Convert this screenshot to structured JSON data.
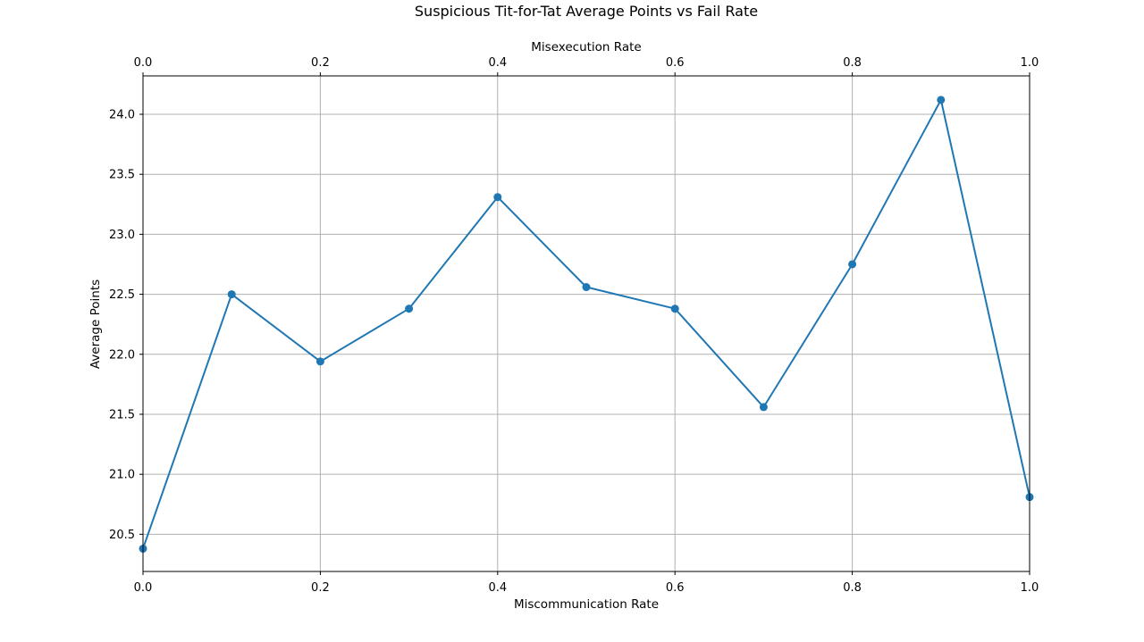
{
  "chart_data": {
    "type": "line",
    "title": "Suspicious Tit-for-Tat Average Points vs Fail Rate",
    "xlabel": "Miscommunication Rate",
    "xlabel_top": "Misexecution Rate",
    "ylabel": "Average Points",
    "xlim": [
      0.0,
      1.0
    ],
    "ylim": [
      20.19,
      24.32
    ],
    "x_ticks": [
      "0.0",
      "0.2",
      "0.4",
      "0.6",
      "0.8",
      "1.0"
    ],
    "x_ticks_top": [
      "0.0",
      "0.2",
      "0.4",
      "0.6",
      "0.8",
      "1.0"
    ],
    "y_ticks": [
      "20.5",
      "21.0",
      "21.5",
      "22.0",
      "22.5",
      "23.0",
      "23.5",
      "24.0"
    ],
    "grid": true,
    "series": [
      {
        "x": [
          0.0,
          0.1,
          0.2,
          0.3,
          0.4,
          0.5,
          0.6,
          0.7,
          0.8,
          0.9,
          1.0
        ],
        "values": [
          20.38,
          22.5,
          21.94,
          22.38,
          23.31,
          22.56,
          22.38,
          21.56,
          22.75,
          24.12,
          20.81
        ],
        "color": "#1f77b4",
        "marker": "circle"
      }
    ]
  }
}
